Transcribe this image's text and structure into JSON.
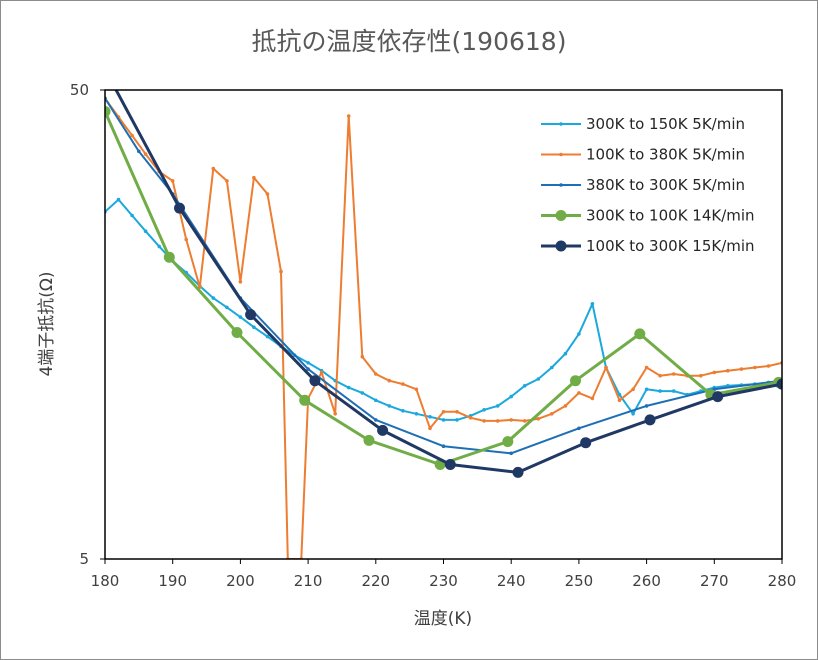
{
  "chart_data": {
    "type": "line",
    "title": "抵抗の温度依存性(190618)",
    "xlabel": "温度(K)",
    "ylabel": "4端子抵抗(Ω)",
    "xlim": [
      180,
      280
    ],
    "ylim": [
      5,
      50
    ],
    "yscale": "log",
    "x_ticks": [
      "180",
      "190",
      "200",
      "210",
      "220",
      "230",
      "240",
      "250",
      "260",
      "270",
      "280"
    ],
    "y_ticks": [
      "5",
      "50"
    ],
    "grid": false,
    "legend_position": "top-right",
    "series": [
      {
        "name": "300K to 150K 5K/min",
        "color": "#1ba9dd",
        "marker": "small",
        "x": [
          180,
          182,
          184,
          186,
          188,
          190,
          192,
          194,
          196,
          198,
          200,
          202,
          204,
          206,
          208,
          210,
          212,
          214,
          216,
          218,
          220,
          222,
          224,
          226,
          228,
          230,
          232,
          234,
          236,
          238,
          240,
          242,
          244,
          246,
          248,
          250,
          252,
          254,
          256,
          258,
          260,
          262,
          264,
          266,
          268,
          270,
          272,
          274,
          276,
          278,
          280
        ],
        "y": [
          27.5,
          29.2,
          27.0,
          25.0,
          23.2,
          21.6,
          20.4,
          19.1,
          18.0,
          17.2,
          16.4,
          15.6,
          14.9,
          14.2,
          13.6,
          13.1,
          12.6,
          12.0,
          11.6,
          11.3,
          10.9,
          10.6,
          10.35,
          10.2,
          10.05,
          9.9,
          9.9,
          10.1,
          10.4,
          10.6,
          11.1,
          11.7,
          12.1,
          12.8,
          13.7,
          15.1,
          17.5,
          12.8,
          11.2,
          10.2,
          11.5,
          11.4,
          11.4,
          11.2,
          11.4,
          11.6,
          11.7,
          11.75,
          11.8,
          11.9,
          12.0
        ]
      },
      {
        "name": "100K to 380K 5K/min",
        "color": "#ed7d31",
        "marker": "small",
        "x": [
          180,
          182,
          184,
          186,
          188,
          190,
          192,
          194,
          196,
          198,
          200,
          202,
          204,
          206,
          207,
          209,
          210,
          212,
          214,
          216,
          218,
          220,
          222,
          224,
          226,
          228,
          230,
          232,
          234,
          236,
          238,
          240,
          242,
          244,
          246,
          248,
          250,
          252,
          254,
          256,
          258,
          260,
          262,
          264,
          266,
          268,
          270,
          272,
          274,
          276,
          278,
          280
        ],
        "y": [
          48.0,
          43.8,
          40.0,
          36.5,
          33.5,
          32.0,
          24.0,
          19.0,
          34.0,
          32.0,
          19.5,
          32.5,
          30.0,
          20.5,
          5.0,
          5.0,
          11.0,
          12.5,
          10.2,
          44.0,
          13.5,
          12.4,
          12.0,
          11.8,
          11.5,
          9.5,
          10.3,
          10.3,
          10.0,
          9.85,
          9.85,
          9.9,
          9.85,
          9.95,
          10.2,
          10.6,
          11.3,
          11.0,
          12.8,
          10.9,
          11.5,
          12.8,
          12.3,
          12.4,
          12.3,
          12.3,
          12.5,
          12.6,
          12.7,
          12.8,
          12.9,
          13.1
        ]
      },
      {
        "name": "380K to 300K 5K/min",
        "color": "#1f6fb5",
        "marker": "small",
        "x": [
          180,
          185,
          190,
          200,
          210,
          220,
          230,
          240,
          250,
          260,
          270,
          280
        ],
        "y": [
          48.0,
          37.0,
          30.0,
          18.0,
          12.7,
          9.9,
          8.7,
          8.4,
          9.5,
          10.6,
          11.5,
          12.0
        ]
      },
      {
        "name": "300K to 100K 14K/min",
        "color": "#70ad47",
        "marker": "large",
        "x": [
          180,
          189.5,
          199.5,
          209.5,
          219,
          229.5,
          239.5,
          249.5,
          259,
          269.5,
          279.5
        ],
        "y": [
          45.0,
          22.0,
          15.2,
          10.9,
          8.95,
          7.95,
          8.9,
          12.0,
          15.1,
          11.2,
          11.9
        ]
      },
      {
        "name": "100K to 300K 15K/min",
        "color": "#203864",
        "marker": "large",
        "x": [
          181,
          191,
          201.5,
          211,
          221,
          231,
          241,
          251,
          260.5,
          270.5,
          280
        ],
        "y": [
          52.0,
          28.0,
          16.6,
          12.0,
          9.4,
          7.95,
          7.65,
          8.85,
          9.9,
          11.1,
          11.8
        ]
      }
    ]
  }
}
